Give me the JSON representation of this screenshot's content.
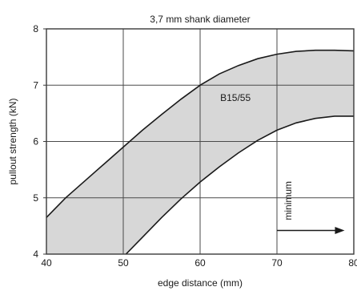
{
  "chart_data": {
    "type": "area",
    "title": "3,7 mm shank diameter",
    "xlabel": "edge distance (mm)",
    "ylabel": "pullout strength (kN)",
    "xlim": [
      40,
      80
    ],
    "ylim": [
      4,
      8
    ],
    "x_ticks": [
      "40",
      "50",
      "60",
      "70",
      "80"
    ],
    "y_ticks": [
      "4",
      "5",
      "6",
      "7",
      "8"
    ],
    "grid": true,
    "band_label": "B15/55",
    "annotation": "minimum",
    "series": [
      {
        "role": "upper",
        "x": [
          40,
          42.5,
          45,
          47.5,
          50,
          52.5,
          55,
          57.5,
          60,
          62.5,
          65,
          67.5,
          70,
          72.5,
          75,
          77.5,
          80
        ],
        "y": [
          4.65,
          5.0,
          5.3,
          5.6,
          5.9,
          6.2,
          6.48,
          6.75,
          7.0,
          7.2,
          7.35,
          7.47,
          7.55,
          7.6,
          7.62,
          7.62,
          7.61
        ]
      },
      {
        "role": "lower",
        "x": [
          50,
          52.5,
          55,
          57.5,
          60,
          62.5,
          65,
          67.5,
          70,
          72.5,
          75,
          77.5,
          80
        ],
        "y": [
          3.95,
          4.3,
          4.65,
          4.98,
          5.28,
          5.55,
          5.8,
          6.02,
          6.2,
          6.33,
          6.41,
          6.45,
          6.45
        ]
      }
    ],
    "colors": {
      "band": "#d7d7d7",
      "line": "#1a1a1a",
      "background": "#ffffff"
    }
  }
}
